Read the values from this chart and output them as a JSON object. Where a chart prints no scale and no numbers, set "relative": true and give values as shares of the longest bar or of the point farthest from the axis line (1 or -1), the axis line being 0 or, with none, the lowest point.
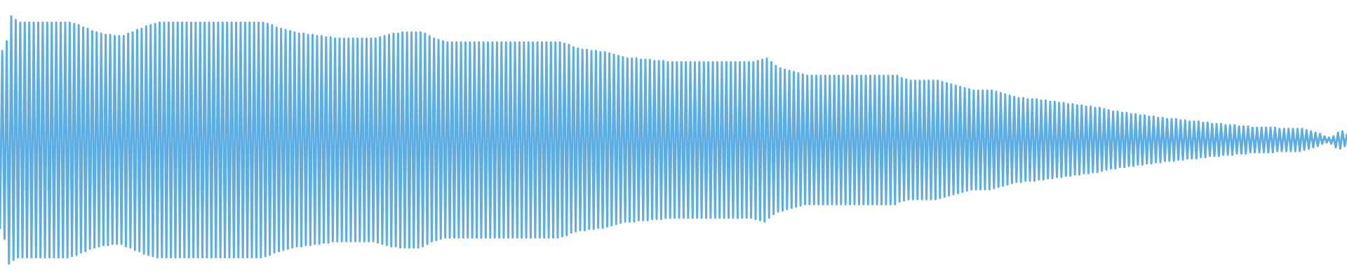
{
  "chart_data": {
    "type": "line",
    "relative": true,
    "categories": [
      null,
      null,
      null,
      null,
      null,
      null,
      null,
      null,
      null,
      null,
      null,
      null,
      null,
      null,
      null,
      null,
      null,
      null,
      null,
      null,
      null,
      null,
      null,
      null,
      null,
      null,
      null,
      null,
      null,
      null,
      null,
      null,
      null,
      null,
      null,
      null,
      null,
      null,
      null,
      null,
      null,
      null,
      null,
      null,
      null,
      null,
      null,
      null,
      null,
      null,
      null,
      null,
      null,
      null,
      null,
      null,
      null,
      null,
      null,
      null,
      null,
      null,
      null,
      null,
      null,
      null,
      null,
      null,
      null,
      null,
      null,
      null,
      null,
      null,
      null,
      null,
      null,
      null,
      null,
      null,
      null,
      null,
      null,
      null,
      null,
      null,
      null,
      null,
      null,
      null,
      null,
      null,
      null,
      null,
      null,
      null,
      null,
      null,
      null,
      null,
      null,
      null,
      null,
      null,
      null,
      null,
      null,
      null,
      null,
      null,
      null,
      null,
      null,
      null,
      null,
      null,
      null,
      null,
      null,
      null,
      null,
      null,
      null,
      null,
      null,
      null,
      null,
      null,
      null,
      null,
      null,
      null,
      null,
      null,
      null,
      null,
      null,
      null,
      null,
      null,
      null,
      null,
      null,
      null,
      null,
      null,
      null,
      null,
      null,
      null,
      null,
      null,
      null,
      null,
      null,
      null,
      null,
      null,
      null,
      null,
      null,
      null,
      null,
      null,
      null,
      null,
      null,
      null,
      null,
      null,
      null,
      null,
      null,
      null,
      null,
      null,
      null,
      null,
      null,
      null,
      null,
      null,
      null,
      null,
      null,
      null,
      null,
      null,
      null,
      null,
      null,
      null,
      null,
      null,
      null,
      null,
      null,
      null,
      null,
      null,
      null,
      null,
      null,
      null,
      null,
      null,
      null,
      null,
      null,
      null,
      null,
      null,
      null,
      null,
      null,
      null,
      null,
      null,
      null,
      null,
      null,
      null,
      null,
      null,
      null,
      null,
      null,
      null,
      null,
      null,
      null,
      null,
      null,
      null,
      null,
      null,
      null,
      null,
      null,
      null,
      null,
      null,
      null,
      null,
      null,
      null,
      null,
      null,
      null,
      null,
      null,
      null,
      null,
      null,
      null,
      null,
      null,
      null,
      null,
      null,
      null,
      null,
      null,
      null,
      null,
      null,
      null,
      null,
      null,
      null,
      null,
      null,
      null,
      null,
      null,
      null,
      null,
      null,
      null,
      null,
      null,
      null,
      null,
      null,
      null,
      null,
      null,
      null,
      null,
      null,
      null,
      null,
      null,
      null,
      null,
      null,
      null,
      null,
      null,
      null,
      null,
      null,
      null,
      null,
      null,
      null,
      null,
      null,
      null,
      null,
      null,
      null,
      null,
      null,
      null,
      null,
      null,
      null,
      null,
      null,
      null,
      null,
      null,
      null,
      null,
      null,
      null,
      null,
      null,
      null,
      null,
      null,
      null,
      null,
      null,
      null,
      null,
      null,
      null,
      null,
      null,
      null,
      null,
      null,
      null,
      null,
      null,
      null,
      null,
      null,
      null,
      null,
      null,
      null,
      null,
      null,
      null,
      null,
      null,
      null,
      null,
      null,
      null,
      null,
      null,
      null,
      null,
      null,
      null,
      null,
      null,
      null,
      null,
      null,
      null,
      null,
      null,
      null,
      null,
      null,
      null,
      null,
      null,
      null,
      null,
      null,
      null,
      null,
      null,
      null,
      null,
      null,
      null,
      null,
      null,
      null,
      null,
      null,
      null,
      null,
      null,
      null,
      null,
      null,
      null,
      null,
      null,
      null,
      null,
      null,
      null,
      null,
      null,
      null,
      null,
      null,
      null,
      null,
      null,
      null,
      null,
      null,
      null,
      null,
      null,
      null,
      null,
      null,
      null,
      null,
      null,
      null,
      null,
      null,
      null,
      null,
      null,
      null,
      null,
      null,
      null,
      null,
      null,
      null,
      null,
      null,
      null,
      null,
      null,
      null,
      null,
      null,
      null,
      null,
      null,
      null,
      null,
      null,
      null,
      null,
      null,
      null,
      null,
      null,
      null,
      null,
      null,
      null,
      null,
      null,
      null,
      null,
      null,
      null,
      null,
      null,
      null,
      null,
      null,
      null,
      null,
      null,
      null,
      null,
      null,
      null,
      null,
      null,
      null,
      null,
      null,
      null,
      null,
      null,
      null,
      null,
      null,
      null,
      null,
      null,
      null,
      null,
      null,
      null,
      null,
      null,
      null,
      null,
      null,
      null,
      null,
      null,
      null,
      null,
      null,
      null,
      null,
      null,
      null,
      null,
      null,
      null,
      null,
      null,
      null,
      null,
      null,
      null,
      null,
      null,
      null,
      null,
      null,
      null,
      null,
      null,
      null,
      null,
      null,
      null,
      null,
      null,
      null,
      null,
      null,
      null,
      null,
      null,
      null,
      null,
      null,
      null,
      null,
      null,
      null,
      null,
      null,
      null,
      null,
      null,
      null,
      null,
      null,
      null,
      null,
      null,
      null,
      null,
      null,
      null,
      null,
      null,
      null,
      null,
      null,
      null,
      null,
      null,
      null,
      null,
      null,
      null,
      null,
      null,
      null,
      null,
      null,
      null,
      null,
      null,
      null,
      null,
      null,
      null,
      null,
      null,
      null,
      null,
      null,
      null
    ],
    "series": [
      {
        "color": "#5dade2",
        "values": [
          0.14,
          0.86,
          0.1,
          0.9,
          0.0,
          1.0,
          0.015,
          0.985,
          0.025,
          0.975,
          0.025,
          0.975,
          0.025,
          0.975,
          0.025,
          0.975,
          0.025,
          0.975,
          0.025,
          0.975,
          0.025,
          0.975,
          0.025,
          0.975,
          0.025,
          0.975,
          0.025,
          0.975,
          0.025,
          0.975,
          0.025,
          0.975,
          0.03,
          0.97,
          0.035,
          0.965,
          0.045,
          0.955,
          0.05,
          0.95,
          0.06,
          0.94,
          0.065,
          0.935,
          0.07,
          0.93,
          0.075,
          0.925,
          0.075,
          0.925,
          0.08,
          0.92,
          0.08,
          0.92,
          0.08,
          0.92,
          0.07,
          0.93,
          0.065,
          0.935,
          0.055,
          0.945,
          0.05,
          0.95,
          0.04,
          0.96,
          0.035,
          0.965,
          0.03,
          0.97,
          0.025,
          0.975,
          0.025,
          0.975,
          0.025,
          0.975,
          0.025,
          0.975,
          0.025,
          0.975,
          0.025,
          0.975,
          0.025,
          0.975,
          0.025,
          0.975,
          0.025,
          0.975,
          0.025,
          0.975,
          0.025,
          0.975,
          0.025,
          0.975,
          0.025,
          0.975,
          0.025,
          0.975,
          0.025,
          0.975,
          0.025,
          0.975,
          0.025,
          0.975,
          0.025,
          0.975,
          0.025,
          0.975,
          0.025,
          0.975,
          0.025,
          0.975,
          0.025,
          0.975,
          0.025,
          0.975,
          0.025,
          0.975,
          0.03,
          0.97,
          0.035,
          0.965,
          0.045,
          0.955,
          0.05,
          0.95,
          0.055,
          0.945,
          0.06,
          0.94,
          0.065,
          0.935,
          0.07,
          0.93,
          0.07,
          0.93,
          0.075,
          0.925,
          0.075,
          0.925,
          0.08,
          0.92,
          0.08,
          0.92,
          0.085,
          0.915,
          0.085,
          0.915,
          0.09,
          0.91,
          0.09,
          0.91,
          0.09,
          0.91,
          0.09,
          0.91,
          0.09,
          0.91,
          0.09,
          0.91,
          0.09,
          0.91,
          0.09,
          0.91,
          0.09,
          0.91,
          0.09,
          0.91,
          0.085,
          0.915,
          0.08,
          0.92,
          0.075,
          0.925,
          0.07,
          0.93,
          0.07,
          0.93,
          0.065,
          0.935,
          0.065,
          0.935,
          0.065,
          0.935,
          0.065,
          0.935,
          0.065,
          0.935,
          0.07,
          0.93,
          0.08,
          0.92,
          0.09,
          0.91,
          0.095,
          0.905,
          0.1,
          0.9,
          0.105,
          0.895,
          0.105,
          0.895,
          0.105,
          0.895,
          0.105,
          0.895,
          0.105,
          0.895,
          0.105,
          0.895,
          0.105,
          0.895,
          0.105,
          0.895,
          0.105,
          0.895,
          0.105,
          0.895,
          0.105,
          0.895,
          0.105,
          0.895,
          0.105,
          0.895,
          0.105,
          0.895,
          0.105,
          0.895,
          0.105,
          0.895,
          0.105,
          0.895,
          0.105,
          0.895,
          0.105,
          0.895,
          0.105,
          0.895,
          0.105,
          0.895,
          0.105,
          0.895,
          0.105,
          0.895,
          0.105,
          0.895,
          0.105,
          0.895,
          0.105,
          0.895,
          0.11,
          0.89,
          0.115,
          0.885,
          0.125,
          0.875,
          0.13,
          0.87,
          0.135,
          0.865,
          0.135,
          0.865,
          0.14,
          0.86,
          0.14,
          0.86,
          0.145,
          0.855,
          0.145,
          0.855,
          0.15,
          0.85,
          0.155,
          0.845,
          0.16,
          0.84,
          0.165,
          0.835,
          0.17,
          0.83,
          0.17,
          0.83,
          0.17,
          0.83,
          0.175,
          0.825,
          0.175,
          0.825,
          0.175,
          0.825,
          0.18,
          0.82,
          0.18,
          0.82,
          0.18,
          0.82,
          0.185,
          0.815,
          0.185,
          0.815,
          0.185,
          0.815,
          0.185,
          0.815,
          0.185,
          0.815,
          0.185,
          0.815,
          0.185,
          0.815,
          0.185,
          0.815,
          0.185,
          0.815,
          0.185,
          0.815,
          0.185,
          0.815,
          0.185,
          0.815,
          0.185,
          0.815,
          0.185,
          0.815,
          0.185,
          0.815,
          0.185,
          0.815,
          0.185,
          0.815,
          0.185,
          0.815,
          0.185,
          0.815,
          0.185,
          0.815,
          0.18,
          0.82,
          0.175,
          0.825,
          0.17,
          0.83,
          0.185,
          0.815,
          0.2,
          0.8,
          0.21,
          0.79,
          0.215,
          0.785,
          0.22,
          0.78,
          0.225,
          0.775,
          0.23,
          0.77,
          0.235,
          0.765,
          0.24,
          0.76,
          0.24,
          0.76,
          0.24,
          0.76,
          0.24,
          0.76,
          0.24,
          0.76,
          0.24,
          0.76,
          0.24,
          0.76,
          0.24,
          0.76,
          0.24,
          0.76,
          0.24,
          0.76,
          0.24,
          0.76,
          0.24,
          0.76,
          0.24,
          0.76,
          0.24,
          0.76,
          0.24,
          0.76,
          0.24,
          0.76,
          0.24,
          0.76,
          0.24,
          0.76,
          0.24,
          0.76,
          0.24,
          0.76,
          0.24,
          0.76,
          0.25,
          0.75,
          0.255,
          0.745,
          0.26,
          0.74,
          0.26,
          0.74,
          0.26,
          0.74,
          0.26,
          0.74,
          0.26,
          0.74,
          0.26,
          0.74,
          0.26,
          0.74,
          0.265,
          0.735,
          0.27,
          0.73,
          0.275,
          0.725,
          0.28,
          0.72,
          0.285,
          0.715,
          0.29,
          0.71,
          0.295,
          0.705,
          0.3,
          0.7,
          0.3,
          0.7,
          0.3,
          0.7,
          0.3,
          0.7,
          0.3,
          0.7,
          0.305,
          0.695,
          0.31,
          0.69,
          0.315,
          0.685,
          0.32,
          0.68,
          0.325,
          0.675,
          0.33,
          0.67,
          0.33,
          0.67,
          0.335,
          0.665,
          0.335,
          0.665,
          0.335,
          0.665,
          0.34,
          0.66,
          0.34,
          0.66,
          0.345,
          0.655,
          0.345,
          0.655,
          0.35,
          0.65,
          0.35,
          0.65,
          0.355,
          0.645,
          0.355,
          0.645,
          0.36,
          0.64,
          0.36,
          0.64,
          0.365,
          0.635,
          0.365,
          0.635,
          0.37,
          0.63,
          0.37,
          0.63,
          0.375,
          0.625,
          0.38,
          0.62,
          0.385,
          0.615,
          0.385,
          0.615,
          0.39,
          0.61,
          0.39,
          0.61,
          0.395,
          0.605,
          0.395,
          0.605,
          0.4,
          0.6,
          0.4,
          0.6,
          0.405,
          0.595,
          0.405,
          0.595,
          0.41,
          0.59,
          0.41,
          0.59,
          0.415,
          0.585,
          0.415,
          0.585,
          0.415,
          0.585,
          0.42,
          0.58,
          0.42,
          0.58,
          0.425,
          0.575,
          0.425,
          0.575,
          0.425,
          0.575,
          0.43,
          0.57,
          0.43,
          0.57,
          0.435,
          0.565,
          0.435,
          0.565,
          0.435,
          0.565,
          0.44,
          0.56,
          0.44,
          0.56,
          0.44,
          0.56,
          0.445,
          0.555,
          0.445,
          0.555,
          0.445,
          0.555,
          0.45,
          0.55,
          0.45,
          0.55,
          0.45,
          0.55,
          0.45,
          0.55,
          0.45,
          0.55,
          0.45,
          0.55,
          0.455,
          0.545,
          0.455,
          0.545,
          0.455,
          0.545,
          0.455,
          0.545,
          0.455,
          0.545,
          0.455,
          0.545,
          0.46,
          0.54,
          0.465,
          0.535,
          0.47,
          0.53,
          0.475,
          0.525,
          0.485,
          0.515,
          0.49,
          0.51,
          0.485,
          0.515,
          0.47,
          0.53,
          0.465,
          0.535,
          0.475,
          0.525
        ]
      }
    ]
  }
}
